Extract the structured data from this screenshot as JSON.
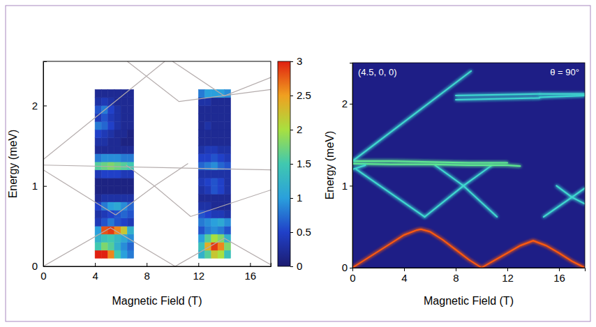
{
  "chart_data": [
    {
      "type": "heatmap",
      "xlabel": "Magnetic Field (T)",
      "ylabel": "Energy (meV)",
      "xlim": [
        0,
        17.6
      ],
      "xticks": [
        0,
        4,
        8,
        12,
        16
      ],
      "ylim": [
        0,
        2.55
      ],
      "yticks": [
        0,
        1,
        2
      ],
      "colorbar": {
        "range": [
          0,
          3
        ],
        "ticks": [
          0,
          0.5,
          1,
          1.5,
          2,
          2.5,
          3
        ]
      },
      "strips": [
        {
          "x": [
            4,
            4.5,
            5,
            5.5,
            6,
            6.5,
            7
          ],
          "y": [
            0.1,
            0.2,
            0.3,
            0.4,
            0.5,
            0.6,
            0.7,
            0.8,
            0.9,
            1.0,
            1.1,
            1.2,
            1.3,
            1.4,
            1.5,
            1.6,
            1.7,
            1.8,
            1.9,
            2.0,
            2.1,
            2.2
          ],
          "z": [
            [
              3,
              3,
              2.6,
              1.5,
              1,
              0.8
            ],
            [
              1.5,
              1.8,
              1.6,
              1.2,
              0.9,
              0.7
            ],
            [
              1.2,
              1.4,
              1.5,
              1.3,
              1.1,
              0.9
            ],
            [
              1,
              2.8,
              2.9,
              2.6,
              2.2,
              1.2
            ],
            [
              0.4,
              0.6,
              0.8,
              0.6,
              0.5,
              0.4
            ],
            [
              0.3,
              0.4,
              0.5,
              0.6,
              0.7,
              0.6
            ],
            [
              0.5,
              0.8,
              1,
              1.1,
              0.9,
              0.7
            ],
            [
              0.2,
              0.3,
              0.3,
              0.3,
              0.3,
              0.3
            ],
            [
              0.1,
              0.1,
              0.1,
              0.1,
              0.1,
              0.1
            ],
            [
              0.1,
              0.1,
              0.1,
              0.1,
              0.1,
              0.1
            ],
            [
              0.4,
              0.5,
              0.5,
              0.5,
              0.4,
              0.4
            ],
            [
              1.6,
              1.7,
              1.8,
              1.7,
              1.6,
              1.5
            ],
            [
              0.8,
              0.9,
              0.9,
              0.9,
              0.8,
              0.8
            ],
            [
              0.2,
              0.2,
              0.2,
              0.2,
              0.2,
              0.2
            ],
            [
              0.3,
              0.3,
              0.2,
              0.2,
              0.1,
              0.1
            ],
            [
              0.5,
              0.4,
              0.3,
              0.2,
              0.2,
              0.1
            ],
            [
              0.8,
              0.7,
              0.5,
              0.3,
              0.2,
              0.2
            ],
            [
              0.4,
              0.6,
              0.4,
              0.3,
              0.2,
              0.2
            ],
            [
              0.6,
              0.8,
              0.5,
              0.3,
              0.2,
              0.2
            ],
            [
              0.3,
              0.4,
              0.3,
              0.2,
              0.2,
              0.2
            ],
            [
              0.2,
              0.2,
              0.2,
              0.2,
              0.2,
              0.2
            ]
          ]
        },
        {
          "x": [
            12,
            12.5,
            13,
            13.5,
            14,
            14.5
          ],
          "y": [
            0.1,
            0.2,
            0.3,
            0.4,
            0.5,
            0.6,
            0.7,
            0.8,
            0.9,
            1.0,
            1.1,
            1.2,
            1.3,
            1.4,
            1.5,
            1.6,
            1.7,
            1.8,
            1.9,
            2.0,
            2.1,
            2.2
          ],
          "z": [
            [
              1.2,
              1.6,
              2.2,
              2,
              1.4
            ],
            [
              1.4,
              2.4,
              2.9,
              2.6,
              1.8
            ],
            [
              1,
              1.6,
              2,
              1.8,
              1.2
            ],
            [
              0.6,
              0.8,
              0.9,
              0.8,
              0.6
            ],
            [
              0.8,
              0.9,
              1,
              1.1,
              0.9
            ],
            [
              0.6,
              0.5,
              0.4,
              0.4,
              0.3
            ],
            [
              0.3,
              0.3,
              0.2,
              0.2,
              0.2
            ],
            [
              0.2,
              0.2,
              0.2,
              0.2,
              0.2
            ],
            [
              0.3,
              0.4,
              0.6,
              0.5,
              0.3
            ],
            [
              0.4,
              0.5,
              0.6,
              0.5,
              0.3
            ],
            [
              0.3,
              0.3,
              0.3,
              0.3,
              0.3
            ],
            [
              0.7,
              0.8,
              0.9,
              0.7,
              0.6
            ],
            [
              0.5,
              0.5,
              0.6,
              0.5,
              0.4
            ],
            [
              0.3,
              0.4,
              0.4,
              0.3,
              0.3
            ],
            [
              0.2,
              0.2,
              0.2,
              0.2,
              0.2
            ],
            [
              0.2,
              0.2,
              0.2,
              0.2,
              0.2
            ],
            [
              0.2,
              0.3,
              0.2,
              0.2,
              0.2
            ],
            [
              0.2,
              0.2,
              0.2,
              0.2,
              0.2
            ],
            [
              0.2,
              0.2,
              0.2,
              0.2,
              0.2
            ],
            [
              0.3,
              0.3,
              0.2,
              0.2,
              0.2
            ],
            [
              0.8,
              1,
              1,
              1,
              0.9
            ]
          ]
        }
      ],
      "series": [
        {
          "color": "#b4acac",
          "x": [
            0,
            5.2,
            10.2
          ],
          "values": [
            0,
            0.48,
            0
          ]
        },
        {
          "color": "#b4acac",
          "x": [
            10.2,
            14,
            17.6
          ],
          "values": [
            0,
            0.35,
            0.02
          ]
        },
        {
          "color": "#b4acac",
          "x": [
            0,
            5.6
          ],
          "values": [
            1.2,
            0.64
          ]
        },
        {
          "color": "#b4acac",
          "x": [
            5.6,
            8.6,
            11.2
          ],
          "values": [
            0.64,
            1.0,
            1.28
          ]
        },
        {
          "color": "#b4acac",
          "x": [
            6.4,
            8.6,
            11.4
          ],
          "values": [
            1.26,
            1.0,
            0.62
          ]
        },
        {
          "color": "#b4acac",
          "x": [
            11.4,
            17.6
          ],
          "values": [
            0.62,
            0.95
          ]
        },
        {
          "color": "#b4acac",
          "x": [
            0,
            17.6
          ],
          "values": [
            1.26,
            1.2
          ]
        },
        {
          "color": "#b4acac",
          "x": [
            0,
            9.4
          ],
          "values": [
            1.33,
            2.55
          ]
        },
        {
          "color": "#b4acac",
          "x": [
            6.5,
            10.5,
            17.6
          ],
          "values": [
            2.55,
            2.05,
            2.2
          ]
        },
        {
          "color": "#b4acac",
          "x": [
            10,
            14,
            17.6
          ],
          "values": [
            2.55,
            2.12,
            2.35
          ]
        }
      ]
    },
    {
      "type": "line",
      "xlabel": "Magnetic Field (T)",
      "ylabel": "Energy (meV)",
      "annotations": [
        "(4.5, 0, 0)",
        "θ = 90°"
      ],
      "xlim": [
        0,
        18
      ],
      "xticks": [
        0,
        4,
        8,
        12,
        16
      ],
      "ylim": [
        0,
        2.5
      ],
      "yticks": [
        0,
        1,
        2
      ],
      "series": [
        {
          "color": "#ff5a10",
          "x": [
            0,
            1,
            2,
            3,
            4,
            5,
            5.3,
            6,
            7,
            8,
            9,
            10
          ],
          "values": [
            0,
            0.1,
            0.2,
            0.3,
            0.4,
            0.46,
            0.47,
            0.44,
            0.34,
            0.22,
            0.1,
            0
          ]
        },
        {
          "color": "#ff5a10",
          "x": [
            10,
            11,
            12,
            13,
            14,
            15,
            16,
            17,
            18
          ],
          "values": [
            0,
            0.09,
            0.18,
            0.27,
            0.33,
            0.27,
            0.18,
            0.08,
            0
          ]
        },
        {
          "color": "#40d8d0",
          "x": [
            0.3,
            5.6
          ],
          "values": [
            1.2,
            0.62
          ]
        },
        {
          "color": "#40d8d0",
          "x": [
            5.6,
            8.6,
            10.8
          ],
          "values": [
            0.62,
            1.0,
            1.25
          ]
        },
        {
          "color": "#40d8d0",
          "x": [
            6.4,
            8.6,
            11.2
          ],
          "values": [
            1.25,
            1.0,
            0.62
          ]
        },
        {
          "color": "#40d8d0",
          "x": [
            14.8,
            17,
            18
          ],
          "values": [
            0.62,
            0.86,
            0.97
          ]
        },
        {
          "color": "#40d8d0",
          "x": [
            15.8,
            17,
            18
          ],
          "values": [
            1.0,
            0.86,
            0.78
          ]
        },
        {
          "color": "#60e890",
          "x": [
            0,
            3,
            6,
            9,
            12,
            13
          ],
          "values": [
            1.27,
            1.26,
            1.26,
            1.25,
            1.25,
            1.24
          ]
        },
        {
          "color": "#60e890",
          "x": [
            0,
            3,
            6,
            9,
            12
          ],
          "values": [
            1.3,
            1.3,
            1.29,
            1.28,
            1.28
          ]
        },
        {
          "color": "#40d8d0",
          "x": [
            0,
            1
          ],
          "values": [
            1.2,
            1.25
          ]
        },
        {
          "color": "#40d8d0",
          "x": [
            0,
            9.2
          ],
          "values": [
            1.3,
            2.4
          ]
        },
        {
          "color": "#40d8d0",
          "x": [
            8,
            14.5
          ],
          "values": [
            2.1,
            2.12
          ]
        },
        {
          "color": "#40d8d0",
          "x": [
            14.5,
            18
          ],
          "values": [
            2.08,
            2.1
          ]
        },
        {
          "color": "#40d8d0",
          "x": [
            8,
            14.5
          ],
          "values": [
            2.05,
            2.07
          ]
        },
        {
          "color": "#40d8d0",
          "x": [
            14.5,
            18
          ],
          "values": [
            2.12,
            2.12
          ]
        }
      ]
    }
  ]
}
